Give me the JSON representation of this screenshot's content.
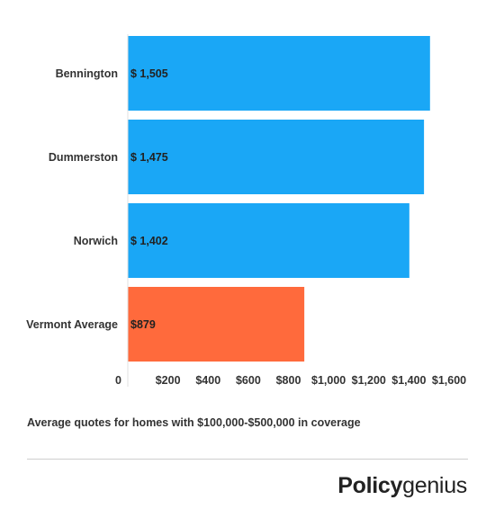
{
  "chart_data": {
    "type": "bar",
    "orientation": "horizontal",
    "categories": [
      "Bennington",
      "Dummerston",
      "Norwich",
      "Vermont Average"
    ],
    "values": [
      1505,
      1475,
      1402,
      879
    ],
    "data_labels": [
      "$ 1,505",
      "$ 1,475",
      "$ 1,402",
      "$879"
    ],
    "colors": [
      "#1aa7f6",
      "#1aa7f6",
      "#1aa7f6",
      "#ff6a3c"
    ],
    "xlim": [
      0,
      1600
    ],
    "x_ticks": [
      0,
      200,
      400,
      600,
      800,
      1000,
      1200,
      1400,
      1600
    ],
    "x_tick_labels": [
      "0",
      "$200",
      "$400",
      "$600",
      "$800",
      "$1,000",
      "$1,200",
      "$1,400",
      "$1,600"
    ],
    "grid": false,
    "legend": "none"
  },
  "footnote": "Average quotes for homes with $100,000-$500,000 in coverage",
  "logo": {
    "bold": "Policy",
    "regular": "genius"
  }
}
